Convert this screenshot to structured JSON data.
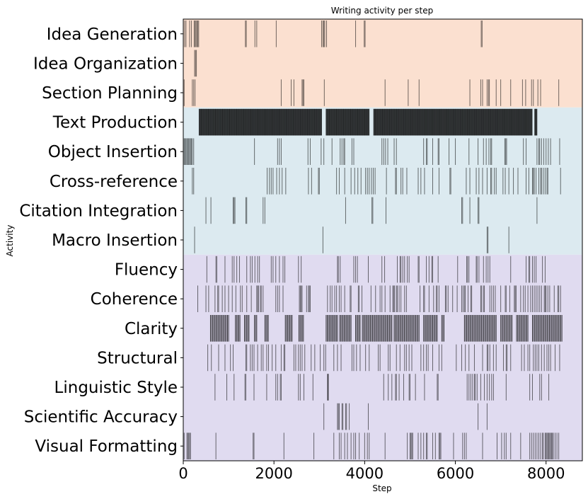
{
  "chart_data": {
    "type": "event-raster",
    "title": "Writing activity per step",
    "xlabel": "Step",
    "ylabel": "Activity",
    "xlim": [
      0,
      8800
    ],
    "xticks": [
      0,
      2000,
      4000,
      6000,
      8000
    ],
    "xtick_labels": [
      "0",
      "2000",
      "4000",
      "6000",
      "8000"
    ],
    "categories": [
      "Idea Generation",
      "Idea Organization",
      "Section Planning",
      "Text Production",
      "Object Insertion",
      "Cross-reference",
      "Citation Integration",
      "Macro Insertion",
      "Fluency",
      "Coherence",
      "Clarity",
      "Structural",
      "Linguistic Style",
      "Scientific Accuracy",
      "Visual Formatting"
    ],
    "groups": [
      {
        "rows": [
          0,
          2
        ],
        "color": "#fbe0d0"
      },
      {
        "rows": [
          3,
          7
        ],
        "color": "#dceaf0"
      },
      {
        "rows": [
          8,
          14
        ],
        "color": "#e0dbf0"
      }
    ],
    "series": [
      {
        "events": [
          30,
          60,
          140,
          180,
          240,
          260,
          280,
          300,
          320,
          340,
          1370,
          1390,
          1580,
          1620,
          2050,
          3050,
          3080,
          3100,
          3120,
          3160,
          3800,
          3990,
          4010,
          6570,
          6590
        ]
      },
      {
        "events": [
          250,
          270,
          290
        ]
      },
      {
        "events": [
          20,
          200,
          230,
          260,
          2160,
          2380,
          2440,
          2620,
          2640,
          2660,
          3110,
          4450,
          4960,
          5200,
          6320,
          6560,
          6600,
          6700,
          6730,
          6750,
          6900,
          7000,
          7220,
          7480,
          7550,
          7680,
          7720,
          7820,
          7880,
          8280
        ]
      },
      {
        "density": [
          [
            350,
            3050
          ],
          [
            3150,
            4100
          ],
          [
            4200,
            7700
          ],
          [
            7750,
            7800
          ]
        ],
        "step": 12
      }
    ],
    "series_more": [
      {
        "events": [
          20,
          40,
          60,
          80,
          100,
          120,
          140,
          160,
          180,
          200,
          230,
          1570,
          2080,
          2120,
          2160,
          2750,
          2800,
          3040,
          3100,
          3280,
          3460,
          3500,
          3540,
          3560,
          3720,
          3760,
          4380,
          4420,
          4460,
          4510,
          4650,
          4700,
          5300,
          5360,
          5380,
          5500,
          5620,
          5640,
          5860,
          6000,
          6300,
          6500,
          6620,
          6680,
          6740,
          6780,
          6800,
          7090,
          7110,
          7130,
          7500,
          7560,
          7800,
          7840,
          7860,
          7900,
          7950,
          8000,
          8050,
          8100,
          8300
        ]
      },
      {
        "events": [
          200,
          230,
          1850,
          1900,
          1940,
          1980,
          2060,
          2120,
          2180,
          2260,
          2760,
          2830,
          2980,
          3000,
          3380,
          3440,
          3560,
          3700,
          3780,
          3850,
          3920,
          4020,
          4060,
          4100,
          4150,
          4190,
          4230,
          4480,
          4680,
          4700,
          4800,
          4840,
          4930,
          5180,
          5240,
          5320,
          5500,
          5640,
          5880,
          5900,
          6240,
          6320,
          6460,
          6520,
          6600,
          6700,
          6780,
          6800,
          6860,
          6900,
          7050,
          7100,
          7180,
          7280,
          7380,
          7560,
          7620,
          7700,
          7720,
          7740,
          7780,
          7840,
          7880,
          7900,
          7940,
          7980,
          8020,
          8040,
          8320
        ]
      },
      {
        "events": [
          500,
          610,
          1100,
          1120,
          1140,
          1380,
          1400,
          1760,
          1800,
          3580,
          4160,
          4180,
          4470,
          6140,
          6160,
          6320,
          6500,
          6520,
          7800
        ]
      },
      {
        "events": [
          250,
          3080,
          6700,
          6720,
          7180
        ]
      },
      {
        "events": [
          520,
          720,
          740,
          920,
          1080,
          1120,
          1180,
          1240,
          1400,
          1480,
          1520,
          1580,
          1640,
          1680,
          1940,
          1980,
          2040,
          2120,
          2200,
          2240,
          2540,
          2600,
          3400,
          3420,
          3460,
          3760,
          3800,
          3840,
          4080,
          4380,
          4440,
          4720,
          4780,
          4800,
          4840,
          4880,
          4940,
          4980,
          5180,
          5200,
          5360,
          5420,
          5480,
          5500,
          5620,
          6050,
          6250,
          6270,
          6300,
          6460,
          6480,
          6520,
          6620,
          6680,
          6720,
          6760,
          7220,
          7560,
          7620,
          7640,
          7700,
          7740,
          7780,
          7920,
          7980
        ]
      },
      {
        "events": [
          320,
          500,
          560,
          700,
          760,
          780,
          860,
          920,
          1000,
          1080,
          1160,
          1260,
          1300,
          1400,
          1500,
          1620,
          1640,
          1660,
          1700,
          1720,
          1760,
          2040,
          2080,
          2120,
          2200,
          2560,
          2580,
          2600,
          2620,
          2720,
          2760,
          2780,
          2800,
          3180,
          3240,
          3280,
          3340,
          3380,
          3440,
          3480,
          3560,
          3680,
          3700,
          3860,
          3880,
          3940,
          4140,
          4240,
          4340,
          4380,
          4450,
          4560,
          4620,
          4640,
          4660,
          4700,
          4720,
          4760,
          4800,
          4880,
          4920,
          5220,
          5300,
          5320,
          5420,
          5520,
          5580,
          5600,
          5640,
          5780,
          5800,
          5840,
          5940,
          6040,
          6140,
          6170,
          6200,
          6220,
          6280,
          6340,
          6360,
          6560,
          6580,
          6620,
          6640,
          6760,
          6800,
          6840,
          6880,
          7000,
          7100,
          7120,
          7200,
          7300,
          7320,
          7340,
          7440,
          7500,
          7540,
          7600,
          7660,
          7700,
          7740,
          7780,
          7820,
          7860,
          7900,
          7960,
          7980,
          8000,
          8040,
          8080,
          8180,
          8260,
          8280,
          8320
        ]
      },
      {
        "density": [
          [
            600,
            1000
          ],
          [
            1150,
            1250
          ],
          [
            1350,
            1450
          ],
          [
            1570,
            1630
          ],
          [
            1800,
            1880
          ],
          [
            2250,
            2420
          ],
          [
            2550,
            2650
          ],
          [
            3150,
            3400
          ],
          [
            3450,
            3700
          ],
          [
            3800,
            3900
          ],
          [
            3950,
            4600
          ],
          [
            4650,
            5200
          ],
          [
            5300,
            5600
          ],
          [
            5700,
            5750
          ],
          [
            6200,
            6900
          ],
          [
            7000,
            7250
          ],
          [
            7350,
            7600
          ],
          [
            7700,
            8350
          ]
        ],
        "step": 25
      },
      {
        "events": [
          540,
          620,
          780,
          920,
          1040,
          1100,
          1380,
          1400,
          1480,
          1520,
          1560,
          1640,
          1720,
          1760,
          1840,
          1880,
          1960,
          2040,
          2160,
          2220,
          2240,
          2440,
          2480,
          2540,
          2580,
          2620,
          2680,
          2820,
          2900,
          3020,
          3100,
          3140,
          3320,
          3400,
          3480,
          3720,
          3760,
          3820,
          3900,
          4020,
          4100,
          4300,
          4340,
          4520,
          4560,
          4700,
          4780,
          4880,
          4920,
          4980,
          5040,
          5240,
          5300,
          5360,
          5400,
          5500,
          5640,
          5700,
          6020,
          6140,
          6220,
          6300,
          6420,
          6600,
          6700,
          6720,
          6760,
          6840,
          6900,
          7060,
          7120,
          7140,
          7220,
          7460,
          7520,
          7600,
          7640,
          7720,
          7760,
          7800,
          7840,
          7900,
          7960,
          8020,
          8060,
          8100,
          8200,
          8300
        ]
      },
      {
        "events": [
          700,
          960,
          1120,
          1360,
          1380,
          1560,
          1840,
          2040,
          2080,
          2140,
          2160,
          2540,
          2580,
          2660,
          2860,
          3180,
          3190,
          3200,
          4420,
          4520,
          4600,
          4680,
          4700,
          4760,
          4860,
          4980,
          5000,
          5120,
          5320,
          5600,
          5620,
          6260,
          6300,
          6340,
          6380,
          6420,
          6440,
          6480,
          6560,
          6640,
          6700,
          6750,
          6800,
          6840,
          7120,
          7640,
          7700,
          7860,
          7900,
          8060
        ]
      },
      {
        "events": [
          3100,
          3400,
          3420,
          3440,
          3500,
          3520,
          3580,
          3600,
          3660,
          4080,
          6500,
          6700
        ]
      },
      {
        "events": [
          20,
          80,
          100,
          120,
          140,
          160,
          720,
          1540,
          1560,
          2220,
          2880,
          3320,
          3440,
          3480,
          3560,
          3620,
          3700,
          3760,
          3800,
          3880,
          4000,
          4060,
          4100,
          4450,
          4940,
          5000,
          5020,
          5040,
          5060,
          5180,
          5240,
          5300,
          5360,
          5380,
          5500,
          5560,
          5640,
          5660,
          5680,
          5960,
          6160,
          6200,
          6240,
          6600,
          6920,
          7020,
          7080,
          7120,
          7220,
          7440,
          7640,
          7680,
          7720,
          7760,
          7800,
          7840,
          7880,
          7920,
          7940,
          7980,
          8000,
          8020,
          8040,
          8060,
          8080,
          8100,
          8120,
          8140,
          8160,
          8200,
          8240,
          8280
        ]
      }
    ]
  }
}
